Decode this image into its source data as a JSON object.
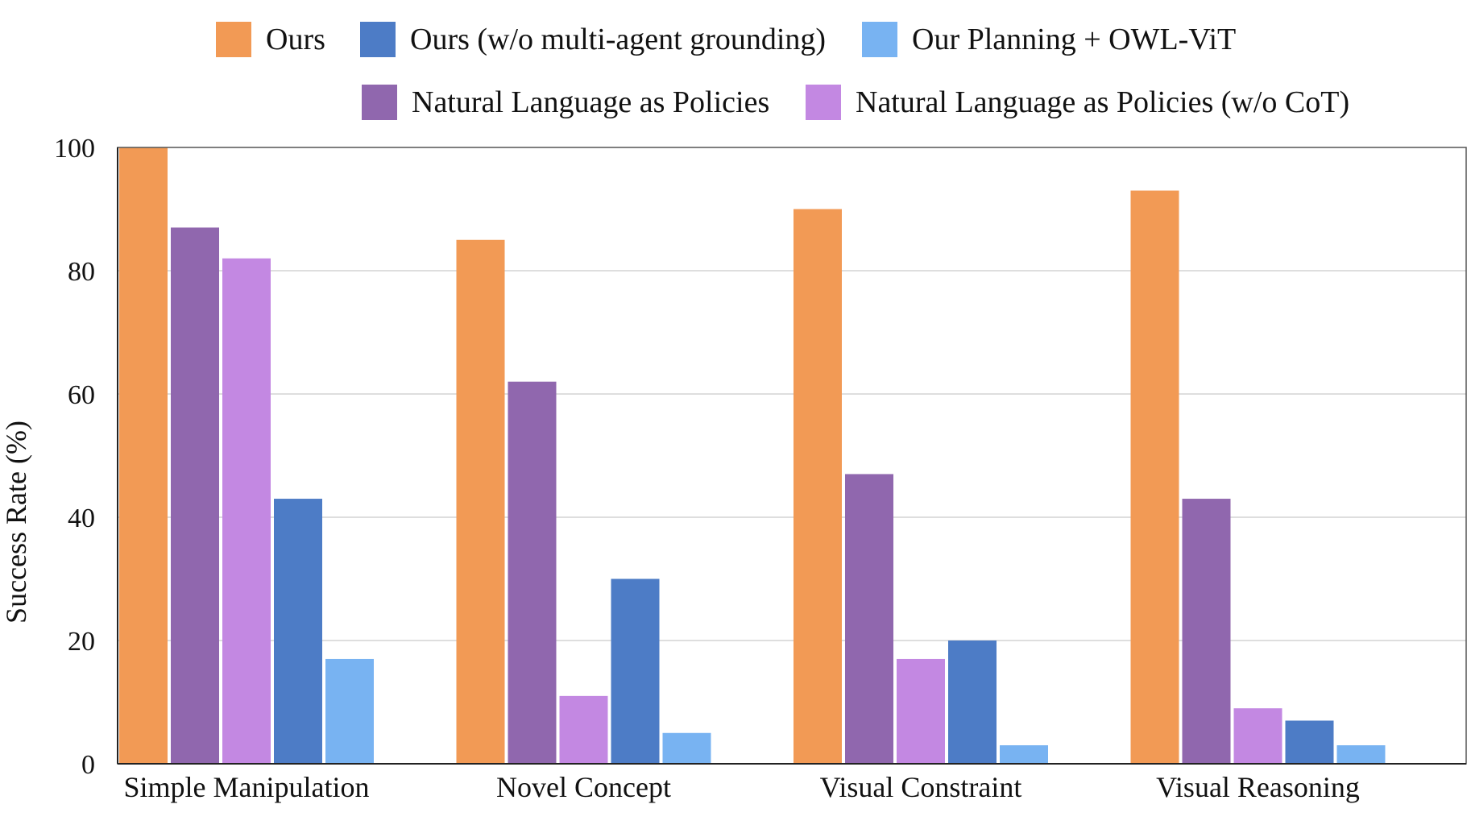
{
  "chart_data": {
    "type": "bar",
    "title": "",
    "xlabel": "",
    "ylabel": "Success Rate (%)",
    "ylim": [
      0,
      100
    ],
    "yticks": [
      "0",
      "20",
      "40",
      "60",
      "80",
      "100"
    ],
    "grid": true,
    "legend_position": "top",
    "categories": [
      "Simple Manipulation",
      "Novel Concept",
      "Visual Constraint",
      "Visual Reasoning"
    ],
    "series": [
      {
        "name": "Ours",
        "color": "#F29A55",
        "values": [
          100,
          85,
          90,
          93
        ]
      },
      {
        "name": "Natural Language as Policies",
        "color": "#9067AE",
        "values": [
          87,
          62,
          47,
          43
        ]
      },
      {
        "name": "Natural Language as Policies (w/o CoT)",
        "color": "#C388E2",
        "values": [
          82,
          11,
          17,
          9
        ]
      },
      {
        "name": "Ours (w/o multi-agent grounding)",
        "color": "#4D7CC6",
        "values": [
          43,
          30,
          20,
          7
        ]
      },
      {
        "name": "Our Planning + OWL-ViT",
        "color": "#78B3F2",
        "values": [
          17,
          5,
          3,
          3
        ]
      }
    ]
  }
}
